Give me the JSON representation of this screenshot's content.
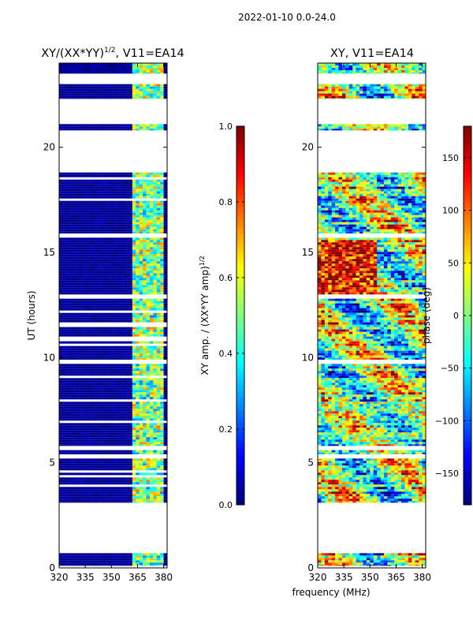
{
  "suptitle": "2022-01-10 0.0-24.0",
  "xlabel": "frequency (MHz)",
  "colors": {
    "jet": [
      "#00007f",
      "#0000ff",
      "#007fff",
      "#00ffff",
      "#7fff7f",
      "#ffff00",
      "#ff7f00",
      "#ff0000",
      "#7f0000"
    ],
    "gap": "#ffffff"
  },
  "chart_data": [
    {
      "type": "heatmap",
      "title_main": "XY/(XX*YY)",
      "title_sup": "1/2",
      "title_rest": ", V11=EA14",
      "xlabel": "",
      "ylabel": "UT (hours)",
      "xlim": [
        320,
        382
      ],
      "ylim": [
        0,
        24
      ],
      "xticks": [
        320,
        335,
        350,
        365,
        380
      ],
      "yticks": [
        0,
        5,
        10,
        15,
        20
      ],
      "color_scale": [
        0,
        1
      ],
      "colorbar": {
        "label_main": "XY amp. / (XX*YY amp)",
        "label_sup": "1/2",
        "ticks": [
          "0.0",
          "0.2",
          "0.4",
          "0.6",
          "0.8",
          "1.0"
        ],
        "tick_values": [
          0,
          0.2,
          0.4,
          0.6,
          0.8,
          1.0
        ]
      },
      "data_intervals_hours": [
        [
          0.1,
          0.7
        ],
        [
          3.1,
          5.2
        ],
        [
          5.4,
          5.6
        ],
        [
          5.8,
          9.7
        ],
        [
          9.9,
          12.8
        ],
        [
          13.0,
          15.7
        ],
        [
          15.9,
          18.8
        ],
        [
          20.8,
          21.1
        ],
        [
          22.3,
          23.0
        ],
        [
          23.5,
          24.0
        ]
      ],
      "rfi_band_mhz": [
        362,
        380
      ],
      "typical_value_clean": 0.05,
      "typical_value_rfi": 0.45
    },
    {
      "type": "heatmap",
      "title_main": "XY, V11=EA14",
      "xlabel": "",
      "ylabel": "",
      "xlim": [
        320,
        382
      ],
      "ylim": [
        0,
        24
      ],
      "xticks": [
        320,
        335,
        350,
        365,
        380
      ],
      "yticks": [
        0,
        5,
        10,
        15,
        20
      ],
      "color_scale": [
        -180,
        180
      ],
      "colorbar": {
        "label_main": "phase (deg)",
        "ticks": [
          "150",
          "100",
          "50",
          "0",
          "−50",
          "−100",
          "−150"
        ],
        "tick_values": [
          150,
          100,
          50,
          0,
          -50,
          -100,
          -150
        ]
      },
      "data_intervals_hours": [
        [
          0.1,
          0.7
        ],
        [
          3.1,
          5.2
        ],
        [
          5.4,
          5.6
        ],
        [
          5.8,
          9.7
        ],
        [
          9.9,
          12.8
        ],
        [
          13.0,
          15.7
        ],
        [
          15.9,
          18.8
        ],
        [
          20.8,
          21.1
        ],
        [
          22.3,
          23.0
        ],
        [
          23.5,
          24.0
        ]
      ],
      "phase_range_deg": [
        -180,
        180
      ]
    }
  ]
}
